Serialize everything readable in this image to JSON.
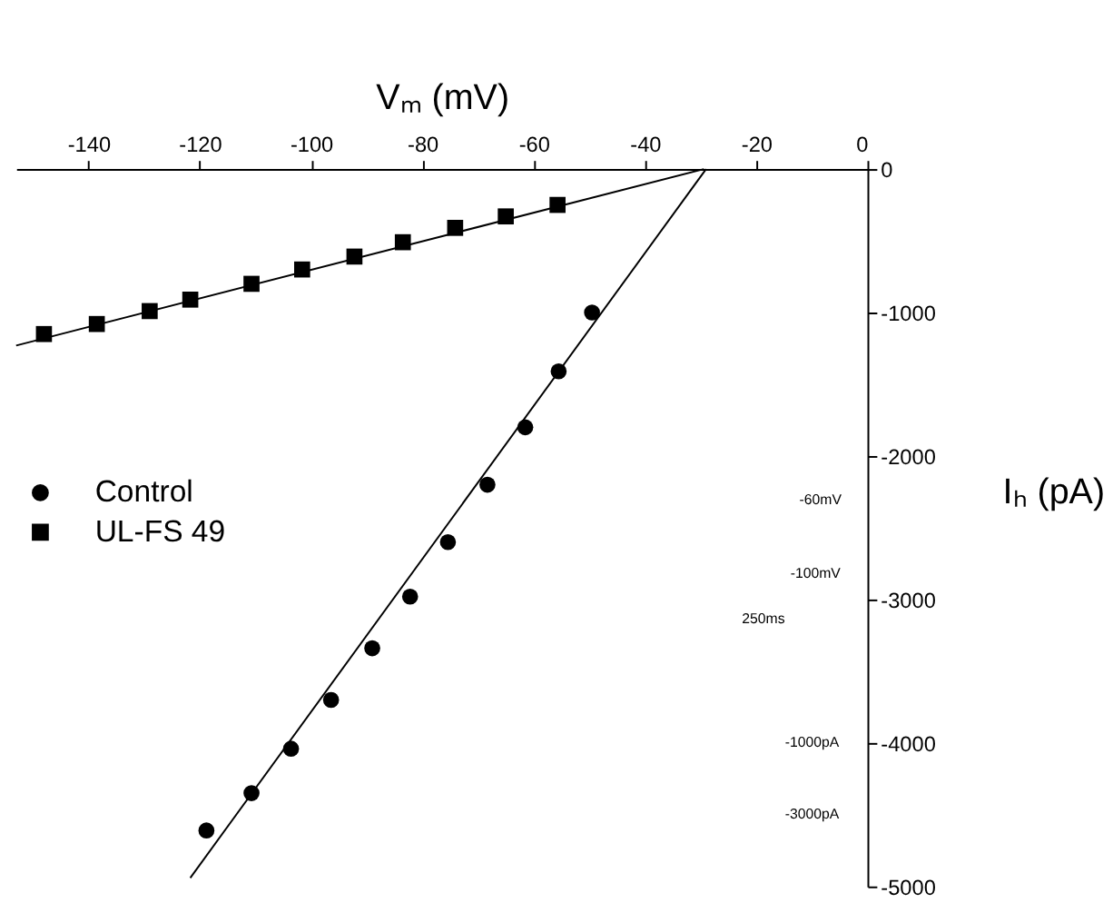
{
  "chart_data": {
    "type": "scatter",
    "xlabel": "Vₘ (mV)",
    "ylabel": "Iₕ (pA)",
    "xlim": [
      -153,
      0
    ],
    "xticks": [
      -140,
      -120,
      -100,
      -80,
      -60,
      -40,
      -20,
      0
    ],
    "ylim": [
      -5000,
      0
    ],
    "yticks": [
      0,
      -1000,
      -2000,
      -3000,
      -4000,
      -5000
    ],
    "grid": false,
    "legend": "left",
    "series": [
      {
        "name": "Control",
        "color": "#000000",
        "marker": "circle",
        "x": [
          -49.5,
          -55.5,
          -61.5,
          -68.3,
          -75.4,
          -82.2,
          -89,
          -96.4,
          -103.6,
          -110.7,
          -118.8
        ],
        "values": [
          -1000,
          -1410,
          -1800,
          -2200,
          -2600,
          -2980,
          -3340,
          -3700,
          -4040,
          -4350,
          -4610
        ]
      },
      {
        "name": "UL-FS 49",
        "color": "#000000",
        "marker": "square",
        "x": [
          -148,
          -138.5,
          -129,
          -121.7,
          -110.7,
          -101.6,
          -92.2,
          -83.5,
          -74.1,
          -65,
          -55.7
        ],
        "values": [
          -1150,
          -1080,
          -990,
          -910,
          -800,
          -700,
          -610,
          -510,
          -410,
          -330,
          -250
        ]
      },
      {
        "type": "line",
        "color": "#000000",
        "marker": "none",
        "line_style": "solid",
        "x": [
          -121.7,
          -29
        ],
        "values": [
          -4940,
          0
        ]
      },
      {
        "type": "line",
        "color": "#000000",
        "marker": "none",
        "line_style": "solid",
        "x": [
          -153,
          -29.4
        ],
        "values": [
          -1230,
          0
        ]
      }
    ],
    "annotations": [
      "-60mV",
      "-100mV",
      "250ms",
      "-1000pA",
      "-3000pA"
    ]
  }
}
